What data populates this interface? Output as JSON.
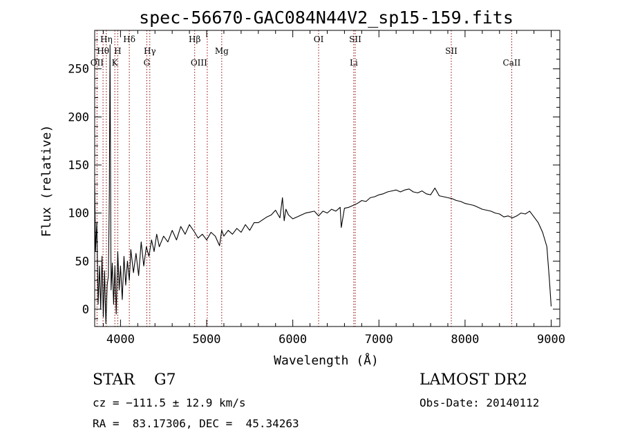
{
  "chart_data": {
    "type": "line",
    "title": "spec-56670-GAC084N44V2_sp15-159.fits",
    "xlabel": "Wavelength (Å)",
    "ylabel": "Flux (relative)",
    "xlim": [
      3700,
      9100
    ],
    "ylim": [
      -18,
      290
    ],
    "x_ticks": [
      4000,
      5000,
      6000,
      7000,
      8000,
      9000
    ],
    "y_ticks": [
      0,
      50,
      100,
      150,
      200,
      250
    ],
    "grid": false,
    "legend": "none",
    "line_color": "#000000",
    "marker_color": "#8b0000",
    "series": [
      {
        "x": [
          3700,
          3710,
          3725,
          3740,
          3755,
          3770,
          3785,
          3800,
          3815,
          3830,
          3845,
          3860,
          3870,
          3878,
          3890,
          3905,
          3920,
          3935,
          3950,
          3968,
          3985,
          4000,
          4020,
          4040,
          4060,
          4080,
          4102,
          4120,
          4150,
          4180,
          4210,
          4240,
          4270,
          4300,
          4330,
          4360,
          4390,
          4420,
          4450,
          4500,
          4550,
          4600,
          4650,
          4700,
          4750,
          4800,
          4861,
          4900,
          4950,
          5000,
          5050,
          5100,
          5150,
          5175,
          5200,
          5250,
          5300,
          5350,
          5400,
          5450,
          5500,
          5550,
          5600,
          5650,
          5700,
          5750,
          5800,
          5850,
          5880,
          5900,
          5920,
          5950,
          6000,
          6050,
          6100,
          6150,
          6200,
          6250,
          6300,
          6350,
          6400,
          6450,
          6500,
          6550,
          6563,
          6600,
          6650,
          6700,
          6750,
          6800,
          6850,
          6900,
          6950,
          7000,
          7050,
          7100,
          7150,
          7200,
          7250,
          7300,
          7350,
          7400,
          7450,
          7500,
          7550,
          7600,
          7650,
          7700,
          7750,
          7800,
          7850,
          7900,
          7950,
          8000,
          8050,
          8100,
          8150,
          8200,
          8250,
          8300,
          8350,
          8400,
          8450,
          8500,
          8550,
          8600,
          8650,
          8700,
          8750,
          8800,
          8850,
          8900,
          8950,
          8980,
          9000
        ],
        "y": [
          135,
          60,
          90,
          5,
          45,
          0,
          55,
          -8,
          40,
          -15,
          25,
          35,
          120,
          275,
          20,
          48,
          5,
          45,
          -5,
          60,
          20,
          45,
          10,
          55,
          25,
          50,
          30,
          62,
          38,
          58,
          35,
          70,
          45,
          65,
          55,
          72,
          60,
          78,
          65,
          76,
          70,
          82,
          72,
          86,
          78,
          88,
          80,
          74,
          78,
          72,
          80,
          76,
          66,
          82,
          76,
          82,
          78,
          84,
          80,
          88,
          82,
          90,
          90,
          93,
          96,
          98,
          103,
          95,
          116,
          92,
          104,
          98,
          94,
          96,
          98,
          100,
          101,
          102,
          97,
          102,
          100,
          104,
          102,
          106,
          85,
          105,
          106,
          108,
          110,
          113,
          112,
          116,
          117,
          119,
          120,
          122,
          123,
          124,
          122,
          124,
          125,
          122,
          121,
          123,
          120,
          119,
          126,
          118,
          117,
          116,
          115,
          113,
          112,
          110,
          109,
          108,
          106,
          104,
          103,
          102,
          100,
          99,
          96,
          97,
          95,
          97,
          100,
          99,
          102,
          96,
          90,
          80,
          65,
          30,
          3
        ]
      }
    ],
    "line_markers": [
      {
        "label": "Hη",
        "wavelength": 3835,
        "row": 0,
        "anchor": "middle"
      },
      {
        "label": "Hθ",
        "wavelength": 3797,
        "row": 1,
        "anchor": "middle"
      },
      {
        "label": "OII",
        "wavelength": 3727,
        "row": 2,
        "anchor": "middle"
      },
      {
        "label": "Hδ",
        "wavelength": 4102,
        "row": 0,
        "anchor": "middle"
      },
      {
        "label": "H",
        "wavelength": 3968,
        "row": 1,
        "anchor": "middle"
      },
      {
        "label": "K",
        "wavelength": 3934,
        "row": 2,
        "anchor": "middle"
      },
      {
        "label": "Hγ",
        "wavelength": 4340,
        "row": 1,
        "anchor": "middle"
      },
      {
        "label": "G",
        "wavelength": 4305,
        "row": 2,
        "anchor": "middle"
      },
      {
        "label": "Hβ",
        "wavelength": 4861,
        "row": 0,
        "anchor": "middle"
      },
      {
        "label": "OIII",
        "wavelength": 5007,
        "row": 2,
        "anchor": "end"
      },
      {
        "label": "Mg",
        "wavelength": 5175,
        "row": 1,
        "anchor": "middle"
      },
      {
        "label": "OI",
        "wavelength": 6300,
        "row": 0,
        "anchor": "middle"
      },
      {
        "label": "SII",
        "wavelength": 6725,
        "row": 0,
        "anchor": "middle"
      },
      {
        "label": "Li",
        "wavelength": 6708,
        "row": 2,
        "anchor": "middle"
      },
      {
        "label": "SII",
        "wavelength": 7840,
        "row": 1,
        "anchor": "middle"
      },
      {
        "label": "CaII",
        "wavelength": 8542,
        "row": 2,
        "anchor": "middle"
      }
    ]
  },
  "info": {
    "object_class": "STAR    G7",
    "survey": "LAMOST DR2",
    "redshift": "cz = −111.5 ± 12.9 km/s",
    "obs_date": "Obs-Date: 20140112",
    "coordinates": "RA =  83.17306, DEC =  45.34263"
  }
}
